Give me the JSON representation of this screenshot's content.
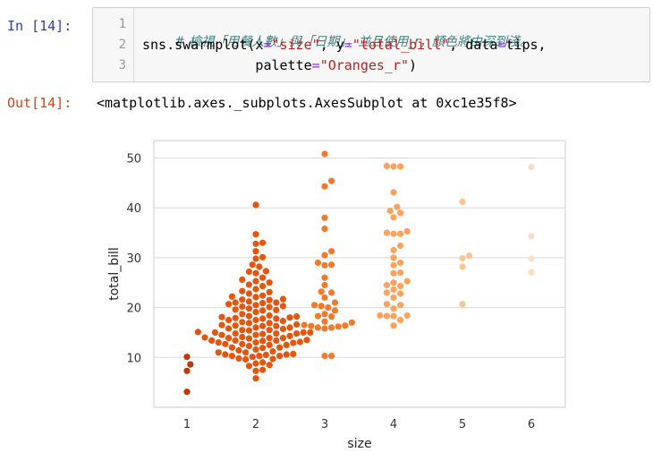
{
  "cell_in": {
    "prompt": "In [14]:",
    "lines": [
      {
        "num": "1",
        "comment": "# 檢視「用餐人數」與「日期」，並且使用_r，顏色將由深到淺。"
      },
      {
        "num": "2",
        "pre": "sns.swarmplot(x",
        "eq1": "=",
        "s1": "\"size\"",
        "mid1": ", y",
        "eq2": "=",
        "s2": "\"total_bill\"",
        "mid2": ", data",
        "eq3": "=",
        "post": "tips,"
      },
      {
        "num": "3",
        "pre": "              palette",
        "eq1": "=",
        "s1": "\"Oranges_r\"",
        "post": ")"
      }
    ]
  },
  "cell_out": {
    "prompt": "Out[14]:",
    "text": "<matplotlib.axes._subplots.AxesSubplot at 0xc1e35f8>"
  },
  "chart_data": {
    "type": "scatter",
    "style": "swarm",
    "xlabel": "size",
    "ylabel": "total_bill",
    "categories": [
      "1",
      "2",
      "3",
      "4",
      "5",
      "6"
    ],
    "yticks": [
      10,
      20,
      30,
      40,
      50
    ],
    "ylim": [
      0,
      53.5
    ],
    "grid": true,
    "colors": [
      "#B93A04",
      "#E6550D",
      "#F17B2A",
      "#FDA25F",
      "#FDC592",
      "#FEDEC2"
    ],
    "groups": [
      {
        "category": "1",
        "values": [
          3.1,
          7.3,
          8.6,
          10.1
        ]
      },
      {
        "category": "2",
        "values": [
          5.8,
          7.3,
          7.5,
          8.3,
          8.5,
          8.8,
          9.0,
          9.6,
          9.7,
          9.8,
          10.1,
          10.3,
          10.3,
          10.3,
          10.5,
          10.6,
          10.6,
          10.7,
          11.0,
          11.0,
          11.2,
          11.4,
          11.6,
          11.9,
          12.0,
          12.0,
          12.3,
          12.5,
          12.5,
          12.7,
          12.7,
          12.9,
          13.0,
          13.0,
          13.1,
          13.3,
          13.4,
          13.4,
          13.4,
          13.5,
          13.8,
          13.9,
          13.9,
          13.9,
          14.0,
          14.1,
          14.3,
          14.5,
          14.5,
          14.7,
          14.8,
          14.8,
          14.8,
          15.0,
          15.0,
          15.0,
          15.1,
          15.4,
          15.5,
          15.5,
          15.7,
          15.8,
          16.0,
          16.0,
          16.3,
          16.3,
          16.4,
          16.5,
          16.6,
          16.9,
          16.9,
          17.1,
          17.3,
          17.5,
          17.5,
          17.8,
          17.8,
          17.9,
          18.0,
          18.1,
          18.2,
          18.3,
          18.4,
          18.7,
          19.1,
          19.4,
          19.5,
          19.6,
          19.8,
          20.1,
          20.2,
          20.3,
          20.5,
          20.7,
          20.9,
          21.0,
          21.0,
          21.2,
          21.5,
          21.6,
          21.7,
          22.1,
          22.2,
          22.4,
          22.8,
          23.1,
          23.3,
          23.7,
          24.3,
          24.6,
          25.0,
          25.3,
          25.6,
          26.0,
          26.9,
          27.2,
          27.3,
          28.2,
          28.6,
          29.8,
          30.1,
          31.3,
          32.8,
          33.0,
          34.7,
          40.6
        ]
      },
      {
        "category": "3",
        "values": [
          10.3,
          10.3,
          15.8,
          16.0,
          16.0,
          16.2,
          16.3,
          16.4,
          16.5,
          17.0,
          17.2,
          18.2,
          18.3,
          18.7,
          19.4,
          20.0,
          20.3,
          20.5,
          21.0,
          22.0,
          23.0,
          23.2,
          24.5,
          26.0,
          28.5,
          28.6,
          29.0,
          30.5,
          31.3,
          35.8,
          38.0,
          44.3,
          45.4,
          50.8
        ]
      },
      {
        "category": "4",
        "values": [
          16.4,
          17.5,
          18.3,
          18.3,
          18.4,
          18.4,
          19.8,
          20.5,
          20.7,
          22.0,
          22.8,
          23.0,
          23.6,
          24.3,
          24.5,
          25.0,
          25.3,
          26.9,
          27.0,
          28.5,
          29.0,
          30.0,
          31.5,
          32.4,
          34.8,
          34.8,
          35.0,
          35.3,
          38.1,
          39.0,
          39.4,
          40.2,
          43.1,
          48.3,
          48.3,
          48.4
        ]
      },
      {
        "category": "5",
        "values": [
          20.7,
          28.2,
          29.9,
          30.4,
          41.2
        ]
      },
      {
        "category": "6",
        "values": [
          27.1,
          29.8,
          34.3,
          48.2
        ]
      }
    ]
  }
}
